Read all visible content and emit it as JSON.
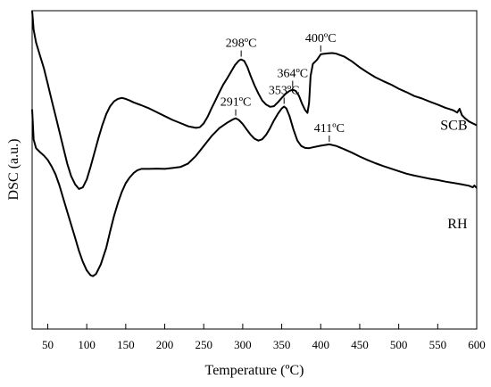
{
  "chart_data": {
    "type": "line",
    "xlabel": "Temperature (ºC)",
    "ylabel": "DSC (a.u.)",
    "xlim": [
      30,
      600
    ],
    "ylim": [
      0,
      100
    ],
    "x_ticks": [
      50,
      100,
      150,
      200,
      250,
      300,
      350,
      400,
      450,
      500,
      550,
      600
    ],
    "y_ticks": [],
    "grid": false,
    "legend": "none",
    "series": [
      {
        "name": "SCB",
        "points": [
          [
            30,
            100
          ],
          [
            32,
            94
          ],
          [
            35,
            90
          ],
          [
            40,
            86
          ],
          [
            45,
            82
          ],
          [
            50,
            77
          ],
          [
            55,
            72
          ],
          [
            60,
            67
          ],
          [
            65,
            62
          ],
          [
            70,
            57
          ],
          [
            75,
            52
          ],
          [
            80,
            48
          ],
          [
            85,
            45.5
          ],
          [
            90,
            44
          ],
          [
            95,
            44.5
          ],
          [
            100,
            47
          ],
          [
            105,
            51
          ],
          [
            110,
            55.5
          ],
          [
            115,
            60
          ],
          [
            120,
            64
          ],
          [
            125,
            67.5
          ],
          [
            130,
            70
          ],
          [
            135,
            71.5
          ],
          [
            140,
            72.3
          ],
          [
            145,
            72.6
          ],
          [
            150,
            72.3
          ],
          [
            155,
            71.8
          ],
          [
            160,
            71.2
          ],
          [
            170,
            70.3
          ],
          [
            180,
            69.3
          ],
          [
            190,
            68.1
          ],
          [
            200,
            66.9
          ],
          [
            210,
            65.7
          ],
          [
            220,
            64.7
          ],
          [
            230,
            63.7
          ],
          [
            240,
            63.2
          ],
          [
            245,
            63.4
          ],
          [
            250,
            64.6
          ],
          [
            255,
            66.7
          ],
          [
            260,
            69.3
          ],
          [
            265,
            71.8
          ],
          [
            270,
            74.4
          ],
          [
            275,
            76.8
          ],
          [
            280,
            78.7
          ],
          [
            285,
            80.8
          ],
          [
            290,
            82.9
          ],
          [
            295,
            84.3
          ],
          [
            298,
            84.7
          ],
          [
            302,
            84.2
          ],
          [
            306,
            82.3
          ],
          [
            310,
            79.6
          ],
          [
            315,
            76.6
          ],
          [
            320,
            74
          ],
          [
            325,
            71.8
          ],
          [
            330,
            70.5
          ],
          [
            335,
            69.8
          ],
          [
            340,
            70
          ],
          [
            345,
            71.2
          ],
          [
            350,
            72.6
          ],
          [
            355,
            73.9
          ],
          [
            360,
            74.8
          ],
          [
            364,
            75.2
          ],
          [
            368,
            74.8
          ],
          [
            372,
            73.3
          ],
          [
            376,
            70.8
          ],
          [
            380,
            68.8
          ],
          [
            383,
            67.9
          ],
          [
            385,
            71
          ],
          [
            387,
            79.5
          ],
          [
            390,
            83.3
          ],
          [
            395,
            84.5
          ],
          [
            400,
            86.3
          ],
          [
            405,
            86.5
          ],
          [
            410,
            86.6
          ],
          [
            415,
            86.7
          ],
          [
            420,
            86.5
          ],
          [
            430,
            85.6
          ],
          [
            440,
            84.1
          ],
          [
            450,
            82.2
          ],
          [
            460,
            80.6
          ],
          [
            470,
            79.1
          ],
          [
            480,
            77.9
          ],
          [
            490,
            76.8
          ],
          [
            500,
            75.5
          ],
          [
            510,
            74.4
          ],
          [
            520,
            73.2
          ],
          [
            530,
            72.4
          ],
          [
            540,
            71.4
          ],
          [
            550,
            70.5
          ],
          [
            560,
            69.5
          ],
          [
            570,
            68.7
          ],
          [
            575,
            68
          ],
          [
            578,
            69.2
          ],
          [
            581,
            67.2
          ],
          [
            585,
            66.2
          ],
          [
            590,
            65.2
          ],
          [
            595,
            64.6
          ],
          [
            600,
            64
          ]
        ]
      },
      {
        "name": "RH",
        "points": [
          [
            30,
            69
          ],
          [
            32,
            59.5
          ],
          [
            35,
            56.8
          ],
          [
            40,
            55.6
          ],
          [
            45,
            54.5
          ],
          [
            50,
            53.1
          ],
          [
            55,
            51.1
          ],
          [
            60,
            48.6
          ],
          [
            65,
            45.1
          ],
          [
            70,
            41
          ],
          [
            75,
            36.9
          ],
          [
            80,
            32.8
          ],
          [
            85,
            28.7
          ],
          [
            90,
            24.6
          ],
          [
            95,
            21.1
          ],
          [
            100,
            18.4
          ],
          [
            105,
            16.9
          ],
          [
            108,
            16.6
          ],
          [
            112,
            17.3
          ],
          [
            118,
            20.3
          ],
          [
            125,
            25.5
          ],
          [
            130,
            30.7
          ],
          [
            135,
            35.5
          ],
          [
            140,
            39.6
          ],
          [
            145,
            43.1
          ],
          [
            150,
            45.8
          ],
          [
            155,
            47.6
          ],
          [
            160,
            49
          ],
          [
            165,
            49.9
          ],
          [
            170,
            50.3
          ],
          [
            180,
            50.3
          ],
          [
            190,
            50.4
          ],
          [
            200,
            50.3
          ],
          [
            210,
            50.6
          ],
          [
            220,
            50.9
          ],
          [
            230,
            52
          ],
          [
            240,
            54.4
          ],
          [
            250,
            57.5
          ],
          [
            260,
            60.6
          ],
          [
            270,
            63.1
          ],
          [
            280,
            64.8
          ],
          [
            287,
            65.8
          ],
          [
            291,
            66.2
          ],
          [
            295,
            65.7
          ],
          [
            300,
            64.4
          ],
          [
            305,
            62.7
          ],
          [
            310,
            61.1
          ],
          [
            315,
            59.8
          ],
          [
            320,
            59.2
          ],
          [
            325,
            59.6
          ],
          [
            330,
            61
          ],
          [
            335,
            63.1
          ],
          [
            340,
            65.5
          ],
          [
            345,
            67.6
          ],
          [
            350,
            69.3
          ],
          [
            353,
            69.9
          ],
          [
            356,
            69.3
          ],
          [
            360,
            66.9
          ],
          [
            365,
            62.7
          ],
          [
            370,
            59.2
          ],
          [
            375,
            57.5
          ],
          [
            380,
            56.9
          ],
          [
            385,
            56.8
          ],
          [
            390,
            57.1
          ],
          [
            400,
            57.6
          ],
          [
            411,
            58
          ],
          [
            420,
            57.5
          ],
          [
            430,
            56.5
          ],
          [
            440,
            55.4
          ],
          [
            450,
            54.2
          ],
          [
            460,
            53.1
          ],
          [
            470,
            52.1
          ],
          [
            480,
            51.2
          ],
          [
            490,
            50.4
          ],
          [
            500,
            49.6
          ],
          [
            510,
            48.8
          ],
          [
            520,
            48.2
          ],
          [
            530,
            47.7
          ],
          [
            540,
            47.2
          ],
          [
            550,
            46.8
          ],
          [
            560,
            46.3
          ],
          [
            570,
            45.9
          ],
          [
            580,
            45.5
          ],
          [
            590,
            45
          ],
          [
            595,
            44.5
          ],
          [
            597,
            45.1
          ],
          [
            600,
            44.3
          ]
        ]
      }
    ],
    "series_labels": [
      {
        "text": "SCB",
        "x": 588,
        "y": 64
      },
      {
        "text": "RH",
        "x": 588,
        "y": 33
      }
    ],
    "annotations": [
      {
        "text": "298ºC",
        "x": 298,
        "y": 84.7
      },
      {
        "text": "364ºC",
        "x": 364,
        "y": 75.2
      },
      {
        "text": "400ºC",
        "x": 400,
        "y": 86.3
      },
      {
        "text": "291ºC",
        "x": 291,
        "y": 66.2
      },
      {
        "text": "353ºC",
        "x": 353,
        "y": 69.9
      },
      {
        "text": "411ºC",
        "x": 411,
        "y": 58
      }
    ]
  }
}
